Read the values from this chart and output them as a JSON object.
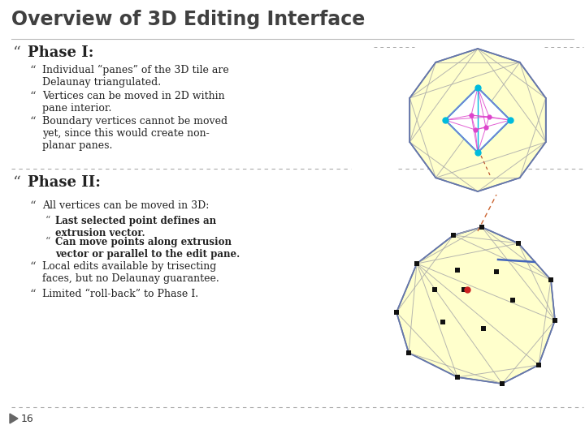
{
  "title": "Overview of 3D Editing Interface",
  "title_color": "#404040",
  "bg_color": "#ffffff",
  "slide_number": "16",
  "phase1_header": "Phase I:",
  "phase1_b1": "Individual “panes” of the 3D tile are\nDelaunay triangulated.",
  "phase1_b2": "Vertices can be moved in 2D within\npane interior.",
  "phase1_b3": "Boundary vertices cannot be moved\nyet, since this would create non-\nplanar panes.",
  "phase2_header": "Phase II:",
  "phase2_b1": "All vertices can be moved in 3D:",
  "phase2_sub1": "Last selected point defines an\nextrusion vector.",
  "phase2_sub2": "Can move points along extrusion\nvector or parallel to the edit pane.",
  "phase2_b2": "Local edits available by trisecting\nfaces, but no Delaunay guarantee.",
  "phase2_b3": "Limited “roll-back” to Phase I.",
  "fill_color": "#ffffcc",
  "edge_color": "#6677aa",
  "tri_color": "#aaaaaa",
  "cyan_color": "#00bbdd",
  "magenta_color": "#dd44cc",
  "black_sq_color": "#111111",
  "red_dot_color": "#cc2222",
  "orange_line_color": "#cc6633"
}
